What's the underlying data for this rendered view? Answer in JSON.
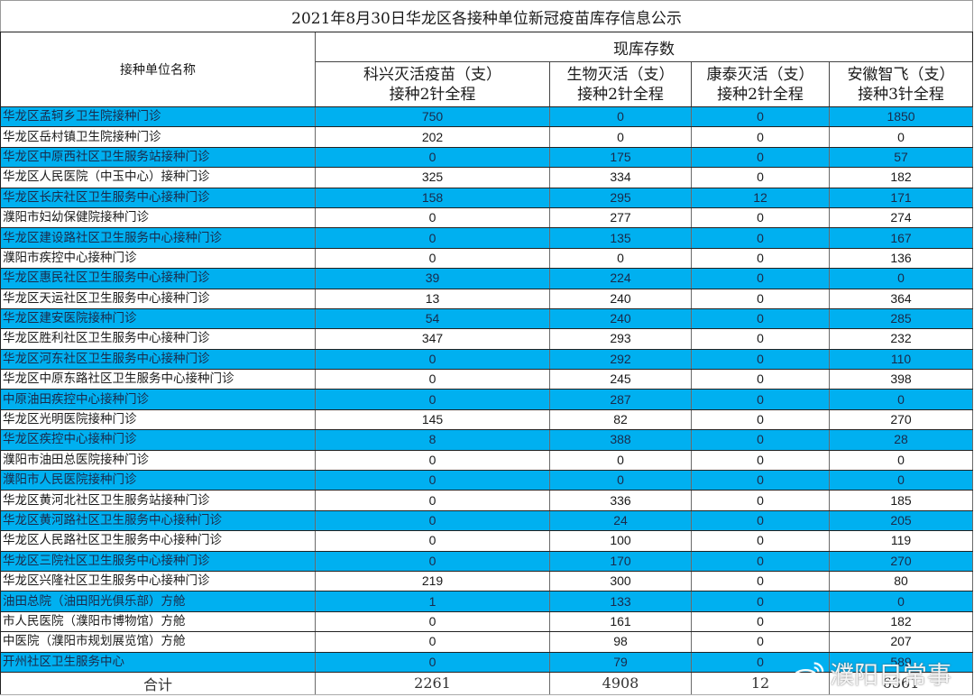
{
  "title": "2021年8月30日华龙区各接种单位新冠疫苗库存信息公示",
  "header": {
    "unit_name": "接种单位名称",
    "group": "现库存数",
    "columns": [
      {
        "line1": "科兴灭活疫苗（支）",
        "line2": "接种2针全程"
      },
      {
        "line1": "生物灭活（支）",
        "line2": "接种2针全程"
      },
      {
        "line1": "康泰灭活（支）",
        "line2": "接种2针全程"
      },
      {
        "line1": "安徽智飞（支）",
        "line2": "接种3针全程"
      }
    ]
  },
  "colors": {
    "highlight_row": "#00b0f0",
    "plain_row": "#ffffff"
  },
  "rows": [
    {
      "name": "华龙区孟轲乡卫生院接种门诊",
      "sinovac": "750",
      "biological": "0",
      "kangtai": "0",
      "zhifei": "1850",
      "highlight": true
    },
    {
      "name": "华龙区岳村镇卫生院接种门诊",
      "sinovac": "202",
      "biological": "0",
      "kangtai": "0",
      "zhifei": "0",
      "highlight": false
    },
    {
      "name": "华龙区中原西社区卫生服务站接种门诊",
      "sinovac": "0",
      "biological": "175",
      "kangtai": "0",
      "zhifei": "57",
      "highlight": true
    },
    {
      "name": "华龙区人民医院（中玉中心）接种门诊",
      "sinovac": "325",
      "biological": "334",
      "kangtai": "0",
      "zhifei": "182",
      "highlight": false
    },
    {
      "name": "华龙区长庆社区卫生服务中心接种门诊",
      "sinovac": "158",
      "biological": "295",
      "kangtai": "12",
      "zhifei": "171",
      "highlight": true
    },
    {
      "name": "濮阳市妇幼保健院接种门诊",
      "sinovac": "0",
      "biological": "277",
      "kangtai": "0",
      "zhifei": "274",
      "highlight": false
    },
    {
      "name": "华龙区建设路社区卫生服务中心接种门诊",
      "sinovac": "0",
      "biological": "135",
      "kangtai": "0",
      "zhifei": "167",
      "highlight": true
    },
    {
      "name": "濮阳市疾控中心接种门诊",
      "sinovac": "0",
      "biological": "0",
      "kangtai": "0",
      "zhifei": "136",
      "highlight": false
    },
    {
      "name": "华龙区惠民社区卫生服务中心接种门诊",
      "sinovac": "39",
      "biological": "224",
      "kangtai": "0",
      "zhifei": "0",
      "highlight": true
    },
    {
      "name": "华龙区天运社区卫生服务中心接种门诊",
      "sinovac": "13",
      "biological": "240",
      "kangtai": "0",
      "zhifei": "364",
      "highlight": false
    },
    {
      "name": "华龙区建安医院接种门诊",
      "sinovac": "54",
      "biological": "240",
      "kangtai": "0",
      "zhifei": "285",
      "highlight": true
    },
    {
      "name": "华龙区胜利社区卫生服务中心接种门诊",
      "sinovac": "347",
      "biological": "293",
      "kangtai": "0",
      "zhifei": "232",
      "highlight": false
    },
    {
      "name": "华龙区河东社区卫生服务中心接种门诊",
      "sinovac": "0",
      "biological": "292",
      "kangtai": "0",
      "zhifei": "110",
      "highlight": true
    },
    {
      "name": "华龙区中原东路社区卫生服务中心接种门诊",
      "sinovac": "0",
      "biological": "245",
      "kangtai": "0",
      "zhifei": "398",
      "highlight": false
    },
    {
      "name": "中原油田疾控中心接种门诊",
      "sinovac": "0",
      "biological": "287",
      "kangtai": "0",
      "zhifei": "0",
      "highlight": true
    },
    {
      "name": "华龙区光明医院接种门诊",
      "sinovac": "145",
      "biological": "82",
      "kangtai": "0",
      "zhifei": "270",
      "highlight": false
    },
    {
      "name": "华龙区疾控中心接种门诊",
      "sinovac": "8",
      "biological": "388",
      "kangtai": "0",
      "zhifei": "28",
      "highlight": true
    },
    {
      "name": "濮阳市油田总医院接种门诊",
      "sinovac": "0",
      "biological": "0",
      "kangtai": "0",
      "zhifei": "0",
      "highlight": false
    },
    {
      "name": "濮阳市人民医院接种门诊",
      "sinovac": "0",
      "biological": "0",
      "kangtai": "0",
      "zhifei": "0",
      "highlight": true
    },
    {
      "name": "华龙区黄河北社区卫生服务站接种门诊",
      "sinovac": "0",
      "biological": "336",
      "kangtai": "0",
      "zhifei": "185",
      "highlight": false
    },
    {
      "name": "华龙区黄河路社区卫生服务中心接种门诊",
      "sinovac": "0",
      "biological": "24",
      "kangtai": "0",
      "zhifei": "205",
      "highlight": true
    },
    {
      "name": "华龙区人民路社区卫生服务中心接种门诊",
      "sinovac": "0",
      "biological": "100",
      "kangtai": "0",
      "zhifei": "119",
      "highlight": false
    },
    {
      "name": "华龙区三院社区卫生服务中心接种门诊",
      "sinovac": "0",
      "biological": "170",
      "kangtai": "0",
      "zhifei": "270",
      "highlight": true
    },
    {
      "name": "华龙区兴隆社区卫生服务中心接种门诊",
      "sinovac": "219",
      "biological": "300",
      "kangtai": "0",
      "zhifei": "80",
      "highlight": false
    },
    {
      "name": "油田总院（油田阳光俱乐部）方舱",
      "sinovac": "1",
      "biological": "133",
      "kangtai": "0",
      "zhifei": "0",
      "highlight": true
    },
    {
      "name": "市人民医院（濮阳市博物馆）方舱",
      "sinovac": "0",
      "biological": "161",
      "kangtai": "0",
      "zhifei": "182",
      "highlight": false
    },
    {
      "name": "中医院（濮阳市规划展览馆）方舱",
      "sinovac": "0",
      "biological": "98",
      "kangtai": "0",
      "zhifei": "207",
      "highlight": false
    },
    {
      "name": "开州社区卫生服务中心",
      "sinovac": "0",
      "biological": "79",
      "kangtai": "0",
      "zhifei": "589",
      "highlight": true
    }
  ],
  "total": {
    "label": "合计",
    "sinovac": "2261",
    "biological": "4908",
    "kangtai": "12",
    "zhifei": "6361"
  },
  "watermark": {
    "icon": "weibo-icon",
    "text": "濮阳日常事"
  }
}
